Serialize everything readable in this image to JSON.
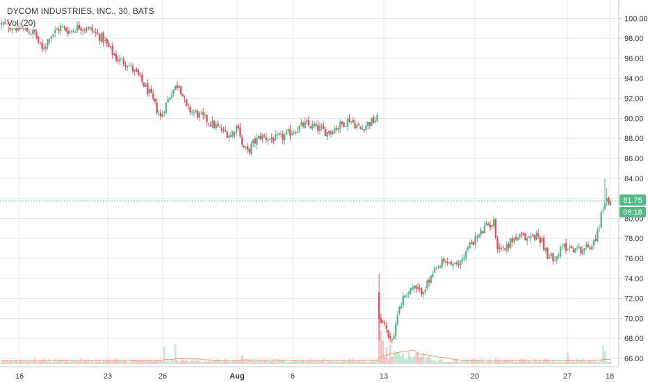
{
  "header": {
    "symbol_title": "DYCOM INDUSTRIES, INC., 30, BATS",
    "volume_indicator": "Vol (20)"
  },
  "price_badges": {
    "last_price": "81.75",
    "countdown": "08:18"
  },
  "colors": {
    "up": "#53b987",
    "down": "#eb4d5c",
    "grid": "#e8e8e8",
    "last_price_line": "#53b987",
    "volume_ma": "#f0a060"
  },
  "chart_data": {
    "type": "candlestick",
    "title": "DYCOM INDUSTRIES, INC., 30, BATS",
    "y_axis": {
      "ticks": [
        "66.00",
        "68.00",
        "70.00",
        "72.00",
        "74.00",
        "76.00",
        "78.00",
        "80.00",
        "82.00",
        "84.00",
        "86.00",
        "88.00",
        "90.00",
        "92.00",
        "94.00",
        "96.00",
        "98.00",
        "100.00"
      ],
      "range": [
        65.5,
        101
      ]
    },
    "x_axis": {
      "ticks": [
        "16",
        "23",
        "26",
        "Aug",
        "6",
        "13",
        "20",
        "27",
        "18"
      ],
      "bold_ticks": [
        "Aug"
      ]
    },
    "grid": true,
    "last_price": 81.75,
    "close_path": [
      [
        0,
        99.4
      ],
      [
        10,
        99.0
      ],
      [
        18,
        98.5
      ],
      [
        22,
        96.8
      ],
      [
        26,
        98.2
      ],
      [
        32,
        99.1
      ],
      [
        37,
        98.7
      ],
      [
        42,
        99.2
      ],
      [
        48,
        98.9
      ],
      [
        55,
        97.9
      ],
      [
        62,
        96.0
      ],
      [
        68,
        95.5
      ],
      [
        74,
        94.2
      ],
      [
        80,
        92.5
      ],
      [
        86,
        90.1
      ],
      [
        88,
        91.0
      ],
      [
        92,
        92.7
      ],
      [
        96,
        93.5
      ],
      [
        100,
        91.0
      ],
      [
        106,
        90.4
      ],
      [
        112,
        89.7
      ],
      [
        118,
        88.9
      ],
      [
        124,
        88.3
      ],
      [
        128,
        89.4
      ],
      [
        130,
        87.3
      ],
      [
        133,
        86.6
      ],
      [
        136,
        87.5
      ],
      [
        140,
        88.2
      ],
      [
        146,
        87.9
      ],
      [
        152,
        88.1
      ],
      [
        158,
        88.8
      ],
      [
        164,
        89.4
      ],
      [
        170,
        89.1
      ],
      [
        176,
        88.6
      ],
      [
        182,
        89.2
      ],
      [
        188,
        89.9
      ],
      [
        194,
        88.9
      ],
      [
        198,
        89.5
      ],
      [
        203,
        89.9
      ],
      [
        204,
        70.3
      ],
      [
        206,
        69.6
      ],
      [
        209,
        68.4
      ],
      [
        212,
        67.8
      ],
      [
        214,
        70.8
      ],
      [
        218,
        72.4
      ],
      [
        222,
        73.1
      ],
      [
        226,
        72.6
      ],
      [
        230,
        73.4
      ],
      [
        234,
        74.6
      ],
      [
        238,
        75.5
      ],
      [
        242,
        75.6
      ],
      [
        246,
        75.1
      ],
      [
        250,
        76.4
      ],
      [
        254,
        77.6
      ],
      [
        258,
        78.3
      ],
      [
        262,
        79.2
      ],
      [
        266,
        79.6
      ],
      [
        268,
        77.2
      ],
      [
        272,
        77.0
      ],
      [
        276,
        77.9
      ],
      [
        280,
        78.1
      ],
      [
        284,
        78.0
      ],
      [
        288,
        78.3
      ],
      [
        292,
        77.9
      ],
      [
        295,
        76.0
      ],
      [
        300,
        76.3
      ],
      [
        304,
        77.2
      ],
      [
        308,
        77.1
      ],
      [
        312,
        76.9
      ],
      [
        318,
        77.2
      ],
      [
        322,
        78.5
      ],
      [
        324,
        80.3
      ],
      [
        326,
        81.9
      ],
      [
        328,
        81.2
      ],
      [
        329,
        81.75
      ]
    ],
    "volume_spikes": [
      {
        "x": 88,
        "v": 3.2
      },
      {
        "x": 94,
        "v": 3.6
      },
      {
        "x": 130,
        "v": 1.6
      },
      {
        "x": 204,
        "v": 10.0
      },
      {
        "x": 205,
        "v": 6.0
      },
      {
        "x": 206,
        "v": 4.2
      },
      {
        "x": 208,
        "v": 3.0
      },
      {
        "x": 210,
        "v": 3.4
      },
      {
        "x": 212,
        "v": 2.2
      },
      {
        "x": 306,
        "v": 2.0
      },
      {
        "x": 325,
        "v": 3.4
      },
      {
        "x": 326,
        "v": 2.2
      }
    ]
  }
}
